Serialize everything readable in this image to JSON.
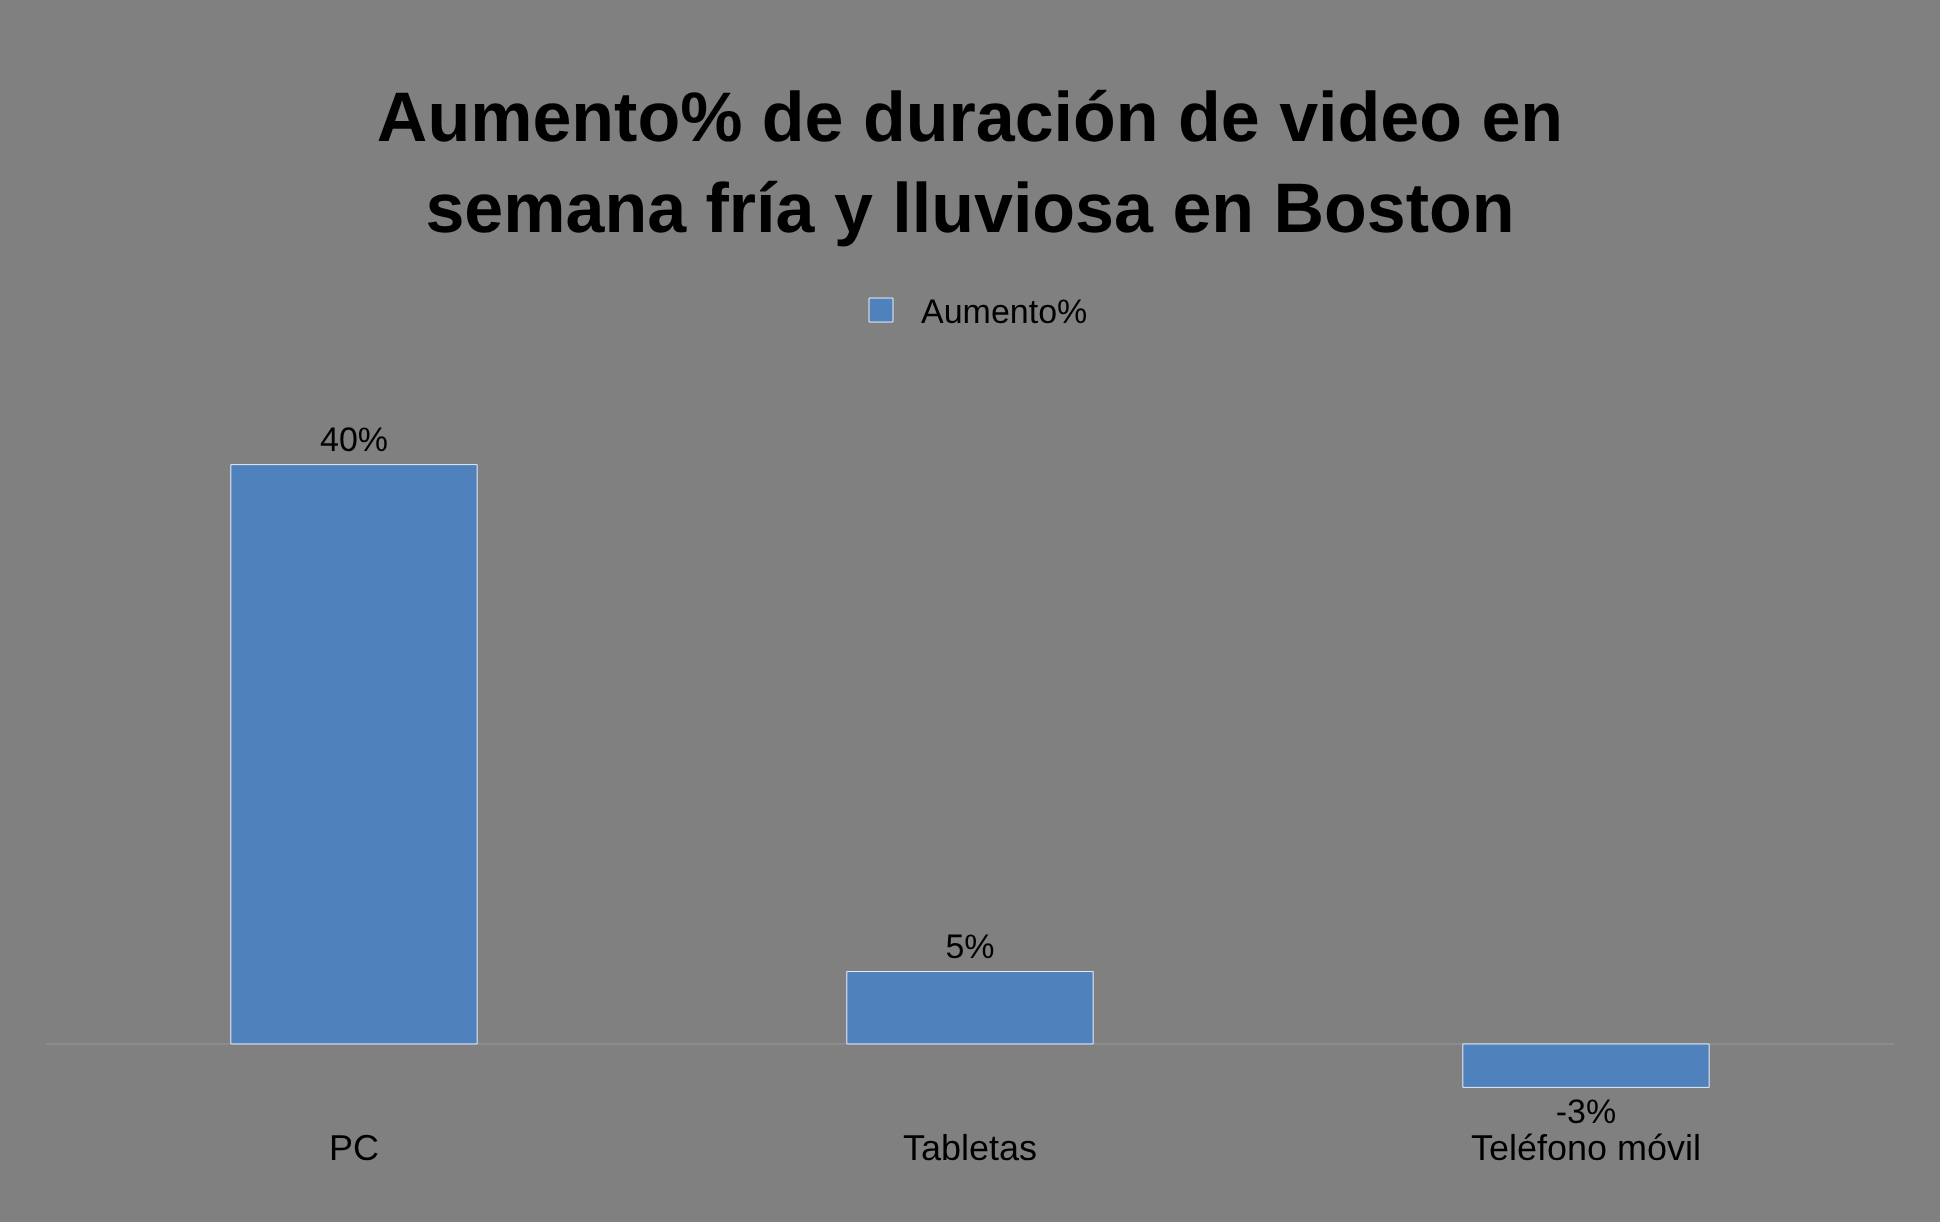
{
  "chart_data": {
    "type": "bar",
    "title": "Aumento% de duración de video en semana fría y lluviosa en Boston",
    "categories": [
      "PC",
      "Tabletas",
      "Teléfono móvil"
    ],
    "series": [
      {
        "name": "Aumento%",
        "color": "#4f81bd",
        "values": [
          40,
          5,
          -3
        ],
        "value_labels": [
          "40%",
          "5%",
          "-3%"
        ]
      }
    ],
    "tick_labels": "x",
    "legend": "top",
    "grid": false
  }
}
